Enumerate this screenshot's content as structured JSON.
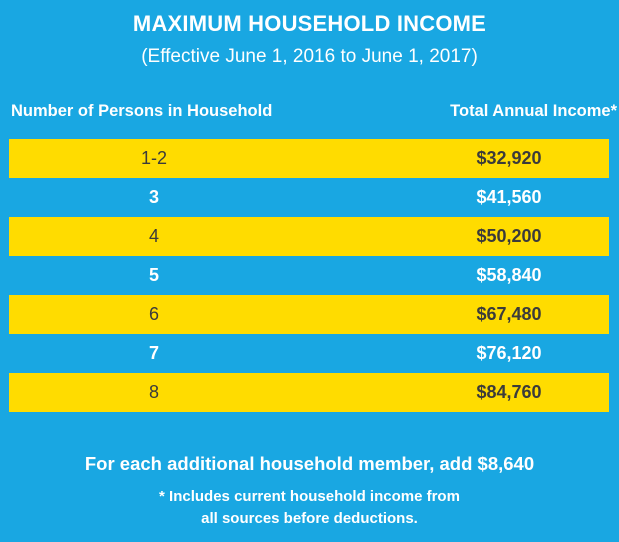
{
  "title": "MAXIMUM HOUSEHOLD INCOME",
  "subtitle": "(Effective June 1, 2016 to June 1, 2017)",
  "table": {
    "headers": {
      "persons": "Number of Persons in Household",
      "income": "Total Annual Income*"
    },
    "rows": [
      {
        "persons": "1-2",
        "income": "$32,920"
      },
      {
        "persons": "3",
        "income": "$41,560"
      },
      {
        "persons": "4",
        "income": "$50,200"
      },
      {
        "persons": "5",
        "income": "$58,840"
      },
      {
        "persons": "6",
        "income": "$67,480"
      },
      {
        "persons": "7",
        "income": "$76,120"
      },
      {
        "persons": "8",
        "income": "$84,760"
      }
    ]
  },
  "additional": "For each additional household member, add $8,640",
  "footnote": {
    "line1": "* Includes current household income from",
    "line2": "all sources before deductions."
  },
  "colors": {
    "background": "#19A7E2",
    "highlight_row": "#FFDC00",
    "text": "#FFFFFF",
    "dark_text": "#3B3B3B"
  }
}
